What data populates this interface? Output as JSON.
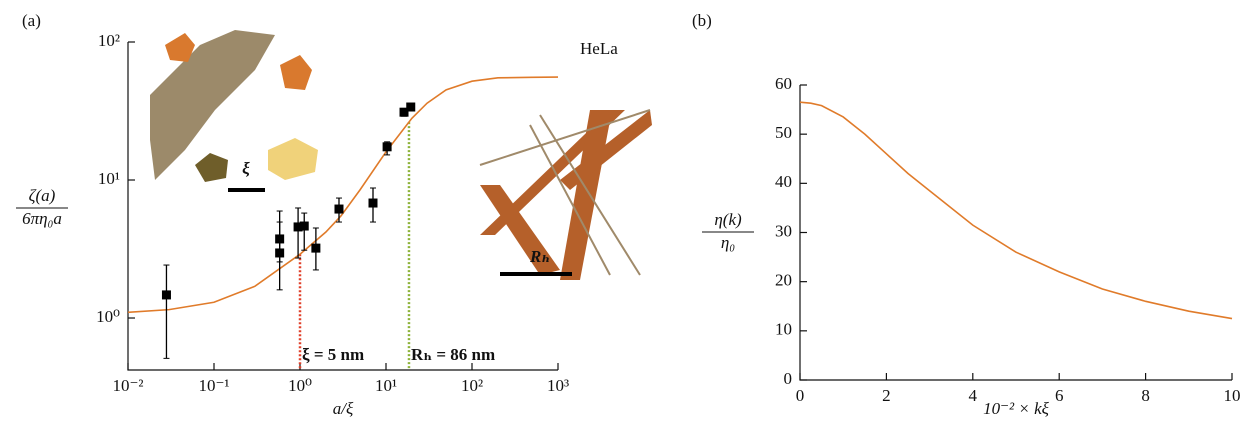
{
  "chart_data": [
    {
      "type": "scatter",
      "panel": "(a)",
      "xlabel": "a/ξ",
      "ylabel_num": "ζ(a)",
      "ylabel_den": "6πη₀a",
      "xlog": true,
      "ylog": true,
      "xlim": [
        0.01,
        1000
      ],
      "ylim": [
        0.42,
        100
      ],
      "xticks": [
        {
          "value": 0.01,
          "label": "10⁻²"
        },
        {
          "value": 0.1,
          "label": "10⁻¹"
        },
        {
          "value": 1,
          "label": "10⁰"
        },
        {
          "value": 10,
          "label": "10¹"
        },
        {
          "value": 100,
          "label": "10²"
        },
        {
          "value": 1000,
          "label": "10³"
        }
      ],
      "yticks": [
        {
          "value": 1,
          "label": "10⁰"
        },
        {
          "value": 10,
          "label": "10¹"
        },
        {
          "value": 100,
          "label": "10²"
        }
      ],
      "points": {
        "color": "#000000",
        "x": [
          0.028,
          0.58,
          0.58,
          0.95,
          1.12,
          1.53,
          2.84,
          7.06,
          10.3,
          16.2,
          19.4
        ],
        "values": [
          1.47,
          2.96,
          3.74,
          4.57,
          4.64,
          3.21,
          6.16,
          6.81,
          17.4,
          31,
          33.8
        ],
        "err_low": [
          0.51,
          1.6,
          2.55,
          2.72,
          3.1,
          2.23,
          4.96,
          4.96,
          15.2,
          29,
          32
        ],
        "err_high": [
          2.42,
          4.96,
          5.96,
          6.27,
          5.76,
          4.49,
          7.4,
          8.75,
          18.9,
          33,
          35.5
        ]
      },
      "curve": {
        "color": "#e07b2a",
        "x": [
          0.01,
          0.03,
          0.1,
          0.3,
          1,
          2,
          3,
          5,
          10,
          20,
          30,
          50,
          100,
          200,
          500,
          1000
        ],
        "values": [
          1.1,
          1.15,
          1.3,
          1.7,
          2.9,
          4.2,
          5.5,
          8.5,
          16,
          28,
          36,
          45,
          52,
          55,
          55.5,
          55.7
        ]
      },
      "annotations": [
        {
          "text": "ξ = 5 nm",
          "x": 1,
          "color": "#e0402a"
        },
        {
          "text": "Rₕ = 86 nm",
          "x": 18.5,
          "color": "#8db23a"
        }
      ],
      "labels": {
        "cell": "HeLa",
        "xi": "ξ",
        "rh": "Rₕ"
      }
    },
    {
      "type": "line",
      "panel": "(b)",
      "xlabel": "10⁻² × kξ",
      "ylabel_num": "η(k)",
      "ylabel_den": "η₀",
      "xlim": [
        0,
        10
      ],
      "ylim": [
        0,
        60
      ],
      "xticks": [
        0,
        2,
        4,
        6,
        8,
        10
      ],
      "yticks": [
        0,
        10,
        20,
        30,
        40,
        50,
        60
      ],
      "color": "#e07b2a",
      "x": [
        0,
        0.25,
        0.5,
        1,
        1.5,
        2,
        2.5,
        3,
        4,
        5,
        6,
        7,
        8,
        9,
        10
      ],
      "values": [
        56.5,
        56.3,
        55.8,
        53.5,
        50,
        46,
        42,
        38.5,
        31.5,
        26,
        22,
        18.5,
        16,
        14,
        12.5
      ]
    }
  ]
}
